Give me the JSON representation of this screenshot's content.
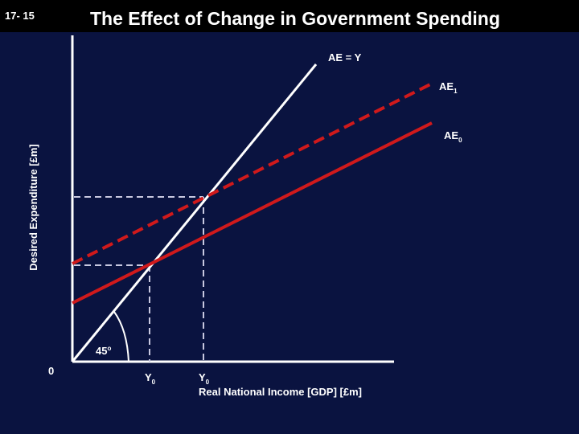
{
  "header": {
    "slide_number": "17- 15",
    "title": "The Effect of Change in Government Spending"
  },
  "diagram": {
    "y_axis_label": "Desired Expenditure [£m]",
    "x_axis_label": "Real National Income [GDP] [£m]",
    "origin_label": "0",
    "angle_label": "45",
    "degree_symbol": "o",
    "line_ae_y": "AE = Y",
    "line_ae1": {
      "main": "AE",
      "sub": "1"
    },
    "line_ae0": {
      "main": "AE",
      "sub": "0"
    },
    "y0_tick": {
      "main": "Y",
      "sub": "0"
    },
    "y1_tick": {
      "main": "Y",
      "sub": "0"
    }
  },
  "colors": {
    "background": "#0a1340",
    "title_bar": "#000000",
    "ae_line": "#d0191b",
    "axis": "#ffffff",
    "dashed_guide": "#c8c8e0"
  }
}
